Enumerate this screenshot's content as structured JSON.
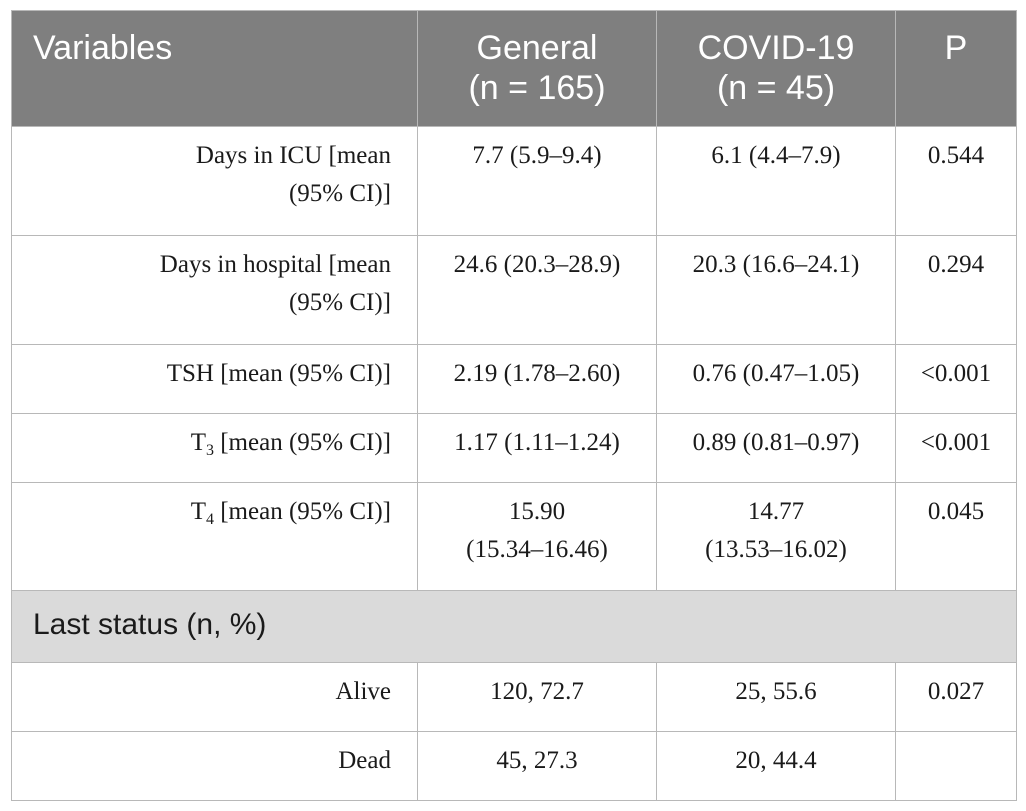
{
  "header": {
    "variables": "Variables",
    "general_line1": "General",
    "general_line2": "(n = 165)",
    "covid_line1": "COVID-19",
    "covid_line2": "(n = 45)",
    "p": "P"
  },
  "rows": [
    {
      "label_line1": "Days in ICU [mean",
      "label_line2": "(95% CI)]",
      "general": "7.7 (5.9–9.4)",
      "covid": "6.1 (4.4–7.9)",
      "p": "0.544"
    },
    {
      "label_line1": "Days in hospital [mean",
      "label_line2": "(95% CI)]",
      "general": "24.6 (20.3–28.9)",
      "covid": "20.3 (16.6–24.1)",
      "p": "0.294"
    },
    {
      "label": "TSH [mean (95% CI)]",
      "general": "2.19 (1.78–2.60)",
      "covid": "0.76 (0.47–1.05)",
      "p": "<0.001"
    },
    {
      "label_prefix": "T",
      "label_sub": "3",
      "label_suffix": " [mean (95% CI)]",
      "general": "1.17 (1.11–1.24)",
      "covid": "0.89 (0.81–0.97)",
      "p": "<0.001"
    },
    {
      "label_prefix": "T",
      "label_sub": "4",
      "label_suffix": " [mean (95% CI)]",
      "general_line1": "15.90",
      "general_line2": "(15.34–16.46)",
      "covid_line1": "14.77",
      "covid_line2": "(13.53–16.02)",
      "p": "0.045"
    }
  ],
  "section": {
    "label": "Last status (n, %)"
  },
  "status_rows": [
    {
      "label": "Alive",
      "general": "120, 72.7",
      "covid": "25, 55.6",
      "p": "0.027"
    },
    {
      "label": "Dead",
      "general": "45, 27.3",
      "covid": "20, 44.4",
      "p": ""
    }
  ]
}
